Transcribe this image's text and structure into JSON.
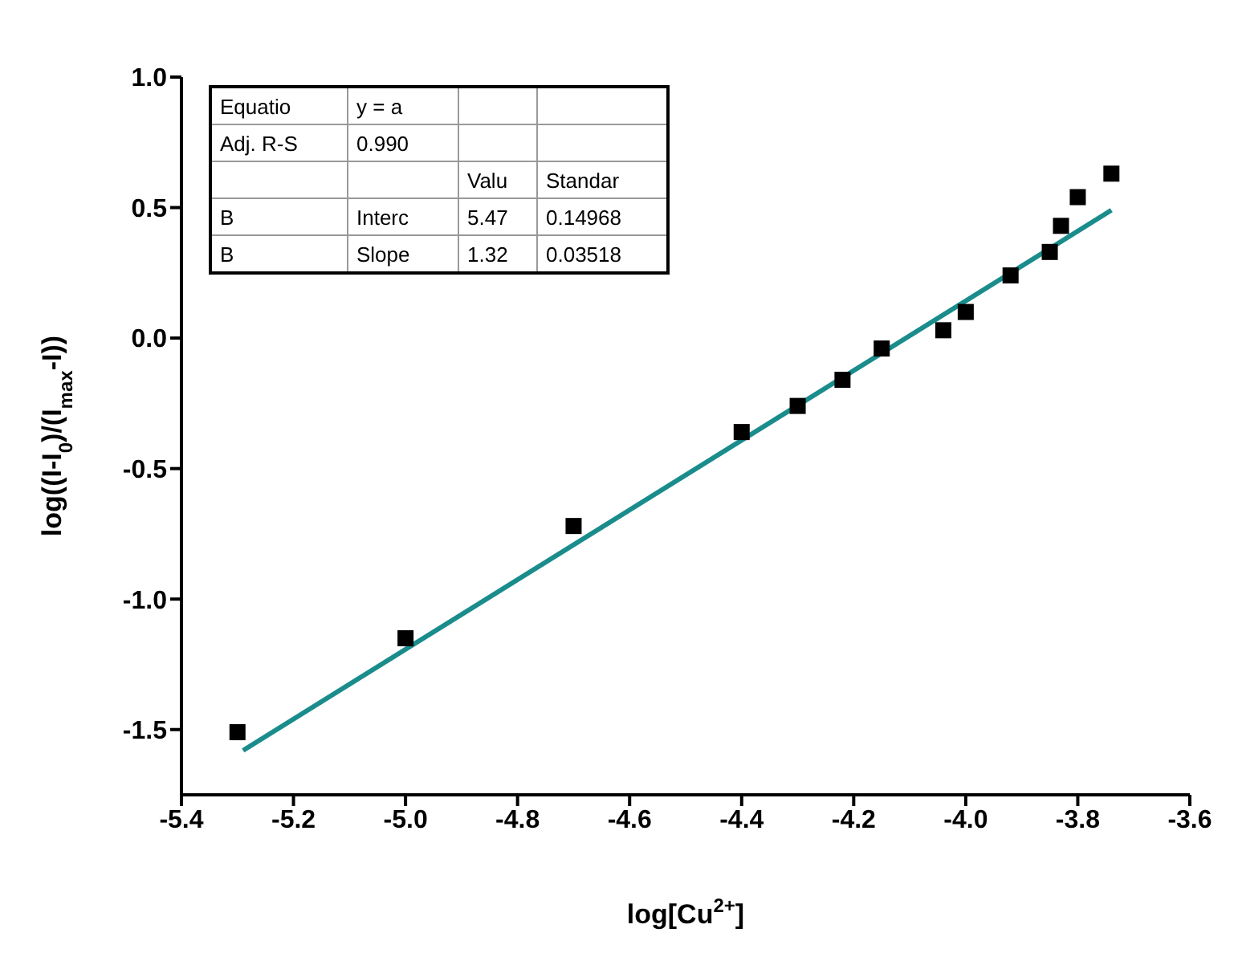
{
  "chart_data": {
    "type": "scatter",
    "xlabel": "log[Cu$^{2+}$]",
    "ylabel": "log((I-I$_{0}$)/(I$_{max}$-I))",
    "xlim": [
      -5.4,
      -3.6
    ],
    "xticks": [
      {
        "value": -5.4,
        "label": "-5.4"
      },
      {
        "value": -5.2,
        "label": "-5.2"
      },
      {
        "value": -5.0,
        "label": "-5.0"
      },
      {
        "value": -4.8,
        "label": "-4.8"
      },
      {
        "value": -4.6,
        "label": "-4.6"
      },
      {
        "value": -4.4,
        "label": "-4.4"
      },
      {
        "value": -4.2,
        "label": "-4.2"
      },
      {
        "value": -4.0,
        "label": "-4.0"
      },
      {
        "value": -3.8,
        "label": "-3.8"
      },
      {
        "value": -3.6,
        "label": "-3.6"
      }
    ],
    "ylim": [
      -1.75,
      1.0
    ],
    "yticks": [
      {
        "value": -1.5,
        "label": "-1.5"
      },
      {
        "value": -1.0,
        "label": "-1.0"
      },
      {
        "value": -0.5,
        "label": "-0.5"
      },
      {
        "value": 0,
        "label": "0.0"
      },
      {
        "value": 0.5,
        "label": "0.5"
      },
      {
        "value": 1.0,
        "label": "1.0"
      }
    ],
    "marker": "square",
    "series": [
      {
        "color": "#000000",
        "x": [
          -5.3,
          -5.0,
          -4.7,
          -4.4,
          -4.3,
          -4.22,
          -4.15,
          -4.04,
          -4.0,
          -3.92,
          -3.85,
          -3.83,
          -3.8,
          -3.74
        ],
        "values": [
          -1.51,
          -1.15,
          -0.72,
          -0.36,
          -0.26,
          -0.16,
          -0.04,
          0.03,
          0.1,
          0.24,
          0.33,
          0.43,
          0.54,
          0.63
        ]
      },
      {
        "type": "line",
        "marker": "none",
        "color": "#1a8c8c",
        "x": [
          -5.29,
          -3.74
        ],
        "values": [
          -1.58,
          0.49
        ]
      }
    ],
    "annotations": [
      "Equatio",
      "y = a",
      "Adj. R-S",
      "0.990",
      "Valu",
      "Standar",
      "B",
      "Interc",
      "5.47",
      "0.14968",
      "B",
      "Slope",
      "1.32",
      "0.03518"
    ]
  }
}
